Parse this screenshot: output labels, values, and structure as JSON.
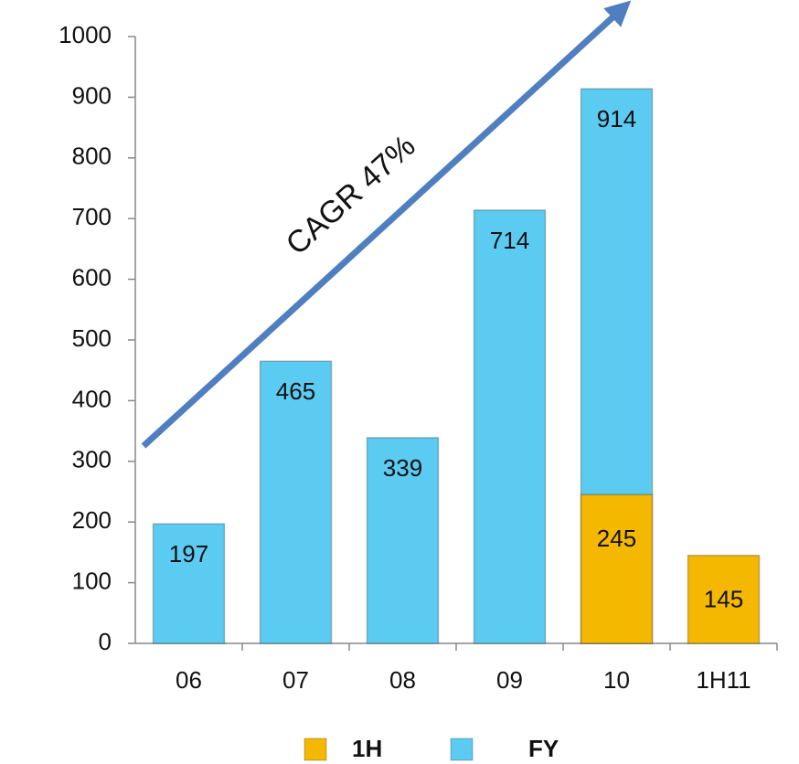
{
  "chart_data": {
    "type": "bar",
    "annotation": "CAGR 47%",
    "categories": [
      "06",
      "07",
      "08",
      "09",
      "10",
      "1H11"
    ],
    "series": [
      {
        "name": "FY",
        "color": "#5ccbf2",
        "values": [
          197,
          465,
          339,
          714,
          914,
          null
        ]
      },
      {
        "name": "1H",
        "color": "#f5b800",
        "values": [
          null,
          null,
          null,
          null,
          245,
          145
        ]
      }
    ],
    "ylim": [
      0,
      1000
    ],
    "yticks": [
      0,
      100,
      200,
      300,
      400,
      500,
      600,
      700,
      800,
      900,
      1000
    ],
    "legend": "bottom"
  }
}
